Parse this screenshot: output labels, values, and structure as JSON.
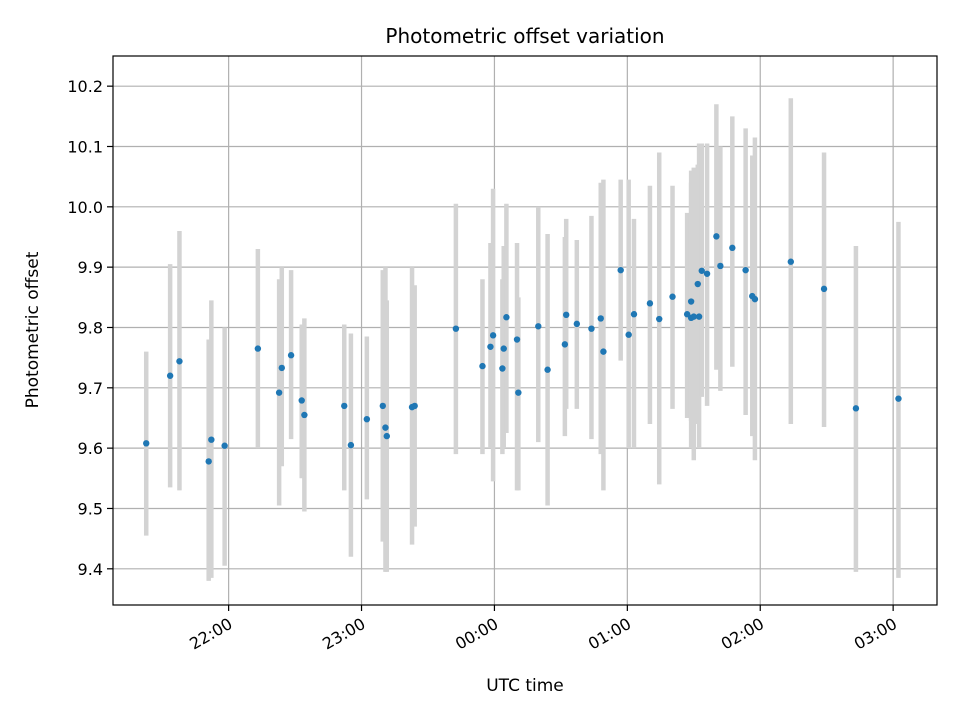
{
  "chart_data": {
    "type": "scatter",
    "title": "Photometric offset variation",
    "xlabel": "UTC time",
    "ylabel": "Photometric offset",
    "x_ticks": [
      "22:00",
      "23:00",
      "00:00",
      "01:00",
      "02:00",
      "03:00"
    ],
    "x_tick_hours": [
      22,
      23,
      24,
      25,
      26,
      27
    ],
    "xlim_hours": [
      21.13,
      27.33
    ],
    "y_ticks": [
      "9.4",
      "9.5",
      "9.6",
      "9.7",
      "9.8",
      "9.9",
      "10.0",
      "10.1",
      "10.2"
    ],
    "ylim": [
      9.34,
      10.25
    ],
    "grid": true,
    "colors": {
      "marker": "#1f77b4",
      "errorbar": "#d3d3d3",
      "grid": "#b0b0b0"
    },
    "series": [
      {
        "x": [
          21.38,
          21.56,
          21.63,
          21.85,
          21.87,
          21.97,
          22.22,
          22.38,
          22.4,
          22.47,
          22.55,
          22.57,
          22.87,
          22.92,
          23.04,
          23.16,
          23.18,
          23.19,
          23.38,
          23.4,
          23.71,
          23.91,
          23.97,
          23.99,
          24.06,
          24.07,
          24.09,
          24.17,
          24.18,
          24.33,
          24.4,
          24.53,
          24.54,
          24.62,
          24.73,
          24.8,
          24.82,
          24.95,
          25.01,
          25.05,
          25.17,
          25.24,
          25.34,
          25.45,
          25.48,
          25.48,
          25.5,
          25.53,
          25.54,
          25.56,
          25.6,
          25.67,
          25.7,
          25.79,
          25.89,
          25.94,
          25.96,
          26.23,
          26.48,
          26.72,
          27.04
        ],
        "y": [
          9.608,
          9.72,
          9.744,
          9.578,
          9.614,
          9.604,
          9.765,
          9.692,
          9.733,
          9.754,
          9.679,
          9.655,
          9.67,
          9.605,
          9.648,
          9.67,
          9.634,
          9.62,
          9.668,
          9.67,
          9.798,
          9.736,
          9.768,
          9.787,
          9.732,
          9.765,
          9.817,
          9.78,
          9.692,
          9.802,
          9.73,
          9.772,
          9.821,
          9.806,
          9.798,
          9.815,
          9.76,
          9.895,
          9.788,
          9.822,
          9.84,
          9.814,
          9.851,
          9.822,
          9.843,
          9.816,
          9.818,
          9.872,
          9.818,
          9.894,
          9.889,
          9.951,
          9.902,
          9.932,
          9.895,
          9.852,
          9.847,
          9.909,
          9.864,
          9.666,
          9.682
        ],
        "err_low": [
          9.455,
          9.535,
          9.53,
          9.38,
          9.385,
          9.405,
          9.6,
          9.505,
          9.57,
          9.615,
          9.55,
          9.495,
          9.53,
          9.42,
          9.515,
          9.445,
          9.395,
          9.395,
          9.44,
          9.47,
          9.59,
          9.59,
          9.6,
          9.545,
          9.59,
          9.6,
          9.625,
          9.53,
          9.53,
          9.61,
          9.505,
          9.62,
          9.665,
          9.665,
          9.615,
          9.59,
          9.53,
          9.745,
          9.6,
          9.6,
          9.64,
          9.54,
          9.665,
          9.65,
          9.645,
          9.6,
          9.58,
          9.64,
          9.6,
          9.685,
          9.67,
          9.73,
          9.695,
          9.735,
          9.655,
          9.62,
          9.58,
          9.64,
          9.635,
          9.395,
          9.385
        ],
        "err_high": [
          9.76,
          9.905,
          9.96,
          9.78,
          9.845,
          9.8,
          9.93,
          9.88,
          9.9,
          9.895,
          9.805,
          9.815,
          9.805,
          9.79,
          9.785,
          9.895,
          9.9,
          9.845,
          9.9,
          9.87,
          10.005,
          9.88,
          9.94,
          10.03,
          9.88,
          9.935,
          10.005,
          9.94,
          9.85,
          10.0,
          9.955,
          9.95,
          9.98,
          9.945,
          9.985,
          10.04,
          10.045,
          10.045,
          10.045,
          9.98,
          10.035,
          10.09,
          10.035,
          9.99,
          10.06,
          10.04,
          10.065,
          10.07,
          10.105,
          10.105,
          10.105,
          10.17,
          10.1,
          10.15,
          10.13,
          10.085,
          10.115,
          10.18,
          10.09,
          9.935,
          9.975
        ]
      }
    ]
  }
}
